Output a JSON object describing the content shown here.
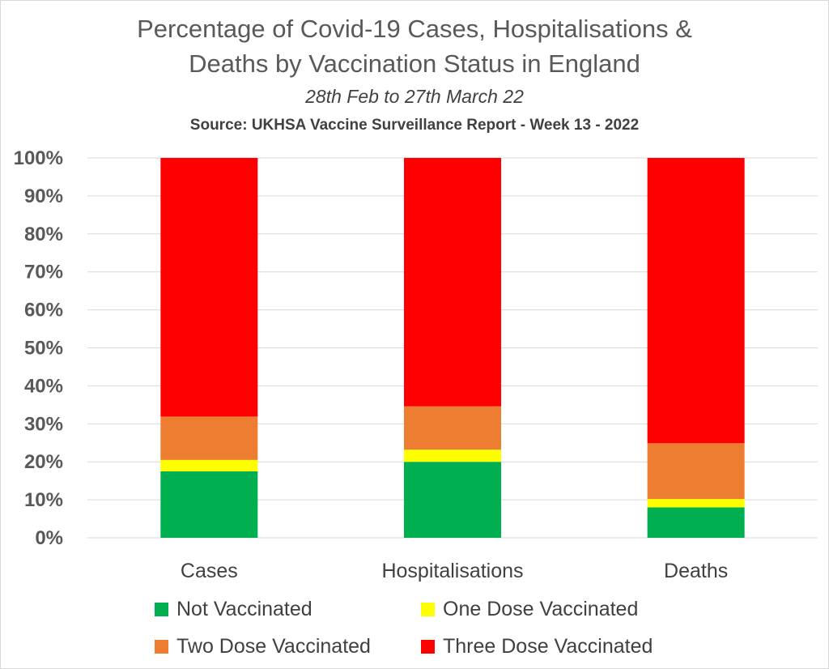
{
  "chart_data": {
    "type": "bar",
    "stacked": true,
    "title_lines": [
      "Percentage of Covid-19 Cases, Hospitalisations &",
      "Deaths by Vaccination Status in England"
    ],
    "subtitle": "28th Feb to 27th March 22",
    "source": "Source: UKHSA Vaccine Surveillance Report - Week 13 - 2022",
    "categories": [
      "Cases",
      "Hospitalisations",
      "Deaths"
    ],
    "series": [
      {
        "name": "Not Vaccinated",
        "color": "#00b050",
        "values": [
          17.5,
          20.0,
          8.0
        ]
      },
      {
        "name": "One Dose Vaccinated",
        "color": "#ffff00",
        "values": [
          3.0,
          3.2,
          2.2
        ]
      },
      {
        "name": "Two Dose Vaccinated",
        "color": "#ed7d31",
        "values": [
          11.4,
          11.4,
          14.7
        ]
      },
      {
        "name": "Three Dose Vaccinated",
        "color": "#ff0000",
        "values": [
          68.1,
          65.4,
          75.1
        ]
      }
    ],
    "ylim": [
      0,
      100
    ],
    "yticks": [
      "0%",
      "10%",
      "20%",
      "30%",
      "40%",
      "50%",
      "60%",
      "70%",
      "80%",
      "90%",
      "100%"
    ],
    "grid": true,
    "legend_position": "bottom"
  }
}
